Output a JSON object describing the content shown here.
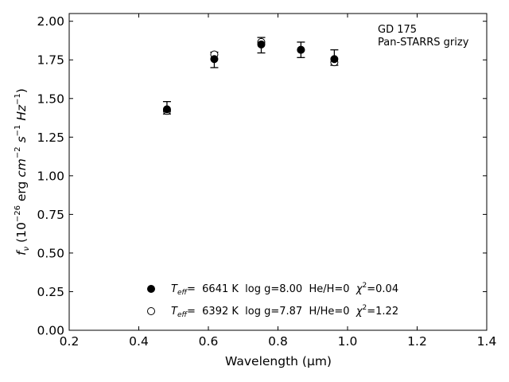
{
  "chart_data": {
    "type": "scatter",
    "title": "",
    "xlabel": "Wavelength (μm)",
    "ylabel_parts": {
      "f": "f",
      "nu": "ν",
      "unit_open": " (10",
      "exp1": "−26",
      "erg": " erg ",
      "cm": "cm",
      "exp2": "−2",
      "s": " s",
      "exp3": "−1",
      "hz": " Hz",
      "exp4": "−1",
      "close": ")"
    },
    "xlim": [
      0.2,
      1.4
    ],
    "ylim": [
      0.0,
      2.05
    ],
    "xticks": [
      "0.2",
      "0.4",
      "0.6",
      "0.8",
      "1.0",
      "1.2",
      "1.4"
    ],
    "yticks": [
      "0.00",
      "0.25",
      "0.50",
      "0.75",
      "1.00",
      "1.25",
      "1.50",
      "1.75",
      "2.00"
    ],
    "grid": false,
    "annotation": {
      "line1": "GD 175",
      "line2": "Pan-STARRS grizy"
    },
    "observed": {
      "x": [
        0.481,
        0.617,
        0.752,
        0.866,
        0.962
      ],
      "y": [
        1.44,
        1.75,
        1.845,
        1.815,
        1.765
      ],
      "yerr": [
        0.04,
        0.05,
        0.05,
        0.05,
        0.05
      ]
    },
    "series": [
      {
        "marker": "filled-circle",
        "x": [
          0.481,
          0.617,
          0.752,
          0.866,
          0.962
        ],
        "y": [
          1.43,
          1.755,
          1.85,
          1.815,
          1.755
        ],
        "legend": {
          "teff_T": "T",
          "teff_sub": "eff",
          "text": "=  6641 K  log g=8.00  He/H=0  ",
          "chi": "χ",
          "chi_sup": "2",
          "chi_val": "=0.04"
        }
      },
      {
        "marker": "open-circle",
        "x": [
          0.481,
          0.617,
          0.752,
          0.866,
          0.962
        ],
        "y": [
          1.42,
          1.785,
          1.865,
          1.815,
          1.735
        ],
        "legend": {
          "teff_T": "T",
          "teff_sub": "eff",
          "text": "=  6392 K  log g=7.87  H/He=0  ",
          "chi": "χ",
          "chi_sup": "2",
          "chi_val": "=1.22"
        }
      }
    ],
    "legend_placement": "lower-center"
  }
}
